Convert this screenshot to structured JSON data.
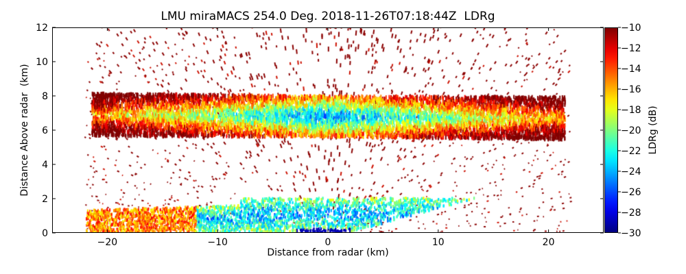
{
  "chart_data": {
    "type": "heatmap",
    "title": "LMU miraMACS 254.0 Deg. 2018-11-26T07:18:44Z  LDRg",
    "xlabel": "Distance from radar (km)",
    "ylabel": "Distance Above radar  (km)",
    "xlim": [
      -25,
      25
    ],
    "ylim": [
      0,
      12
    ],
    "xticks": [
      -20,
      -10,
      0,
      10,
      20
    ],
    "xtick_labels": [
      "−20",
      "−10",
      "0",
      "10",
      "20"
    ],
    "yticks": [
      0,
      2,
      4,
      6,
      8,
      10,
      12
    ],
    "ytick_labels": [
      "0",
      "2",
      "4",
      "6",
      "8",
      "10",
      "12"
    ],
    "colorbar": {
      "label": "LDRg (dB)",
      "colormap": "jet",
      "range": [
        -30,
        -10
      ],
      "ticks": [
        -10,
        -12,
        -14,
        -16,
        -18,
        -20,
        -22,
        -24,
        -26,
        -28,
        -30
      ],
      "tick_labels": [
        "−10",
        "−12",
        "−14",
        "−16",
        "−18",
        "−20",
        "−22",
        "−24",
        "−26",
        "−28",
        "−30"
      ]
    },
    "grid": false,
    "features": [
      {
        "name": "upper cloud layer",
        "x_range": [
          -21.5,
          21.5
        ],
        "height_range_km": [
          5.5,
          8.2
        ],
        "ldr_core_db": -24,
        "ldr_edge_db": -12
      },
      {
        "name": "low layer",
        "x_range": [
          -22,
          14
        ],
        "height_range_km": [
          0,
          2.1
        ],
        "ldr_core_db": -24,
        "ldr_edge_db": -12
      },
      {
        "name": "scattered clutter",
        "x_range": [
          -22,
          22
        ],
        "height_range_km": [
          0,
          12
        ],
        "ldr_core_db": -10
      }
    ]
  }
}
